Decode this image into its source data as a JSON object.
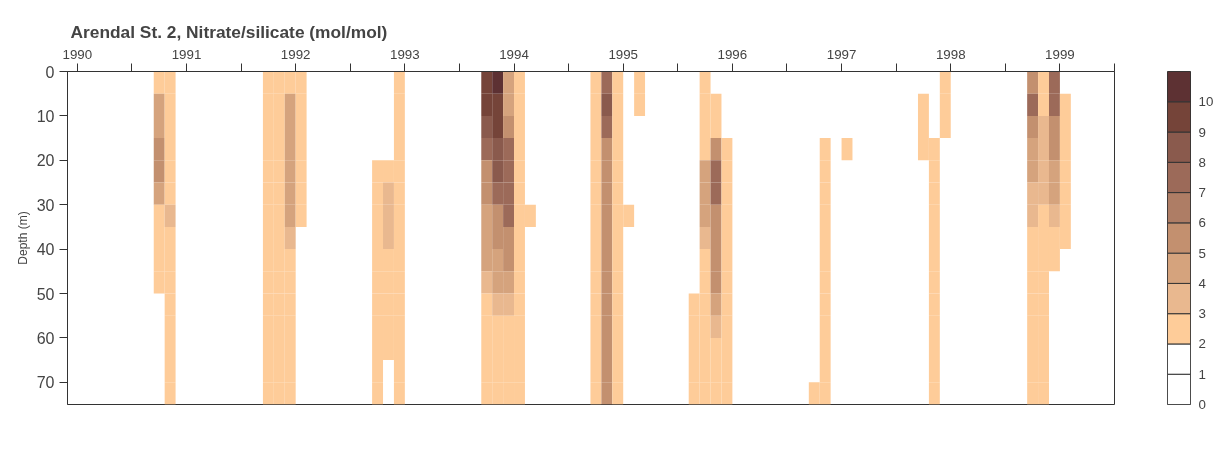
{
  "chart_data": {
    "type": "heatmap",
    "title": "Arendal St. 2, Nitrate/silicate (mol/mol)",
    "ylabel": "Depth (m)",
    "x": [
      1990.45,
      1990.55,
      1990.65,
      1990.75,
      1990.85,
      1990.95,
      1991.05,
      1991.15,
      1991.25,
      1991.35,
      1991.45,
      1991.55,
      1991.65,
      1991.75,
      1991.85,
      1991.95,
      1992.05,
      1992.15,
      1992.25,
      1992.35,
      1992.45,
      1992.55,
      1992.65,
      1992.75,
      1992.85,
      1992.95,
      1993.05,
      1993.15,
      1993.25,
      1993.35,
      1993.45,
      1993.55,
      1993.65,
      1993.75,
      1993.85,
      1993.95,
      1994.05,
      1994.15,
      1994.25,
      1994.35,
      1994.45,
      1994.55,
      1994.65,
      1994.75,
      1994.85,
      1994.95,
      1995.05,
      1995.15,
      1995.25,
      1995.35,
      1995.45,
      1995.55,
      1995.65,
      1995.75,
      1995.85,
      1995.95,
      1996.05,
      1996.15,
      1996.25,
      1996.35,
      1996.45,
      1996.55,
      1996.65,
      1996.75,
      1996.85,
      1996.95,
      1997.05,
      1997.15,
      1997.25,
      1997.35,
      1997.45,
      1997.55,
      1997.65,
      1997.75,
      1997.85,
      1997.95,
      1998.05,
      1998.15,
      1998.25,
      1998.35,
      1998.45,
      1998.55,
      1998.65,
      1998.75,
      1998.85,
      1998.95,
      1999.05,
      1999.15,
      1999.25,
      1999.35,
      1999.45,
      1999.55,
      1999.65,
      1999.75,
      1999.85,
      1999.95
    ],
    "y": [
      2.5,
      7.5,
      12.5,
      17.5,
      22.5,
      27.5,
      32.5,
      37.5,
      42.5,
      47.5,
      52.5,
      57.5,
      62.5,
      67.5,
      72.5
    ],
    "cells": [
      [
        null,
        null,
        null,
        null,
        null,
        null,
        null,
        null,
        3,
        2.5,
        null,
        null,
        null,
        null,
        null,
        null,
        null,
        null,
        2.5,
        2.5,
        3,
        2.5,
        null,
        null,
        null,
        null,
        null,
        null,
        null,
        null,
        2.5,
        null,
        null,
        null,
        null,
        null,
        null,
        null,
        9,
        10,
        4,
        3,
        null,
        null,
        null,
        null,
        null,
        null,
        3,
        7,
        2.5,
        null,
        2.5,
        null,
        null,
        null,
        null,
        null,
        3,
        null,
        null,
        null,
        null,
        null,
        null,
        null,
        null,
        null,
        null,
        null,
        null,
        null,
        null,
        null,
        null,
        null,
        null,
        null,
        null,
        null,
        2.5,
        null,
        null,
        null,
        null,
        null,
        null,
        null,
        6,
        3,
        7,
        null,
        null,
        null,
        null,
        null
      ],
      [
        null,
        null,
        null,
        null,
        null,
        null,
        null,
        null,
        4,
        2.5,
        null,
        null,
        null,
        null,
        null,
        null,
        null,
        null,
        2.5,
        2.5,
        4,
        2.5,
        null,
        null,
        null,
        null,
        null,
        null,
        null,
        null,
        2.5,
        null,
        null,
        null,
        null,
        null,
        null,
        null,
        9,
        9,
        4,
        3,
        null,
        null,
        null,
        null,
        null,
        null,
        3,
        8,
        2.5,
        null,
        2.5,
        null,
        null,
        null,
        null,
        null,
        2.5,
        2.5,
        null,
        null,
        null,
        null,
        null,
        null,
        null,
        null,
        null,
        null,
        null,
        null,
        null,
        null,
        null,
        null,
        null,
        null,
        2.5,
        null,
        2.5,
        null,
        null,
        null,
        null,
        null,
        null,
        null,
        7,
        3,
        7,
        2.5,
        null,
        null,
        null,
        null
      ],
      [
        null,
        null,
        null,
        null,
        null,
        null,
        null,
        null,
        4,
        2.5,
        null,
        null,
        null,
        null,
        null,
        null,
        null,
        null,
        2.5,
        2.5,
        4.5,
        2.5,
        null,
        null,
        null,
        null,
        null,
        null,
        null,
        null,
        2.5,
        null,
        null,
        null,
        null,
        null,
        null,
        null,
        8,
        9,
        5,
        3,
        null,
        null,
        null,
        null,
        null,
        null,
        3,
        7,
        2.5,
        null,
        null,
        null,
        null,
        null,
        null,
        null,
        2.5,
        2.5,
        null,
        null,
        null,
        null,
        null,
        null,
        null,
        null,
        null,
        null,
        null,
        null,
        null,
        null,
        null,
        null,
        null,
        null,
        2.5,
        null,
        2.5,
        null,
        null,
        null,
        null,
        null,
        null,
        null,
        6,
        3.5,
        6,
        2.5,
        null,
        null,
        null,
        null
      ],
      [
        null,
        null,
        null,
        null,
        null,
        null,
        null,
        null,
        6,
        3,
        null,
        null,
        null,
        null,
        null,
        null,
        null,
        null,
        2.5,
        2.5,
        4,
        2.5,
        null,
        null,
        null,
        null,
        null,
        null,
        null,
        null,
        2.5,
        null,
        null,
        null,
        null,
        null,
        null,
        null,
        7,
        8,
        7,
        3,
        null,
        null,
        null,
        null,
        null,
        null,
        3,
        6,
        2.5,
        null,
        null,
        null,
        null,
        null,
        null,
        null,
        3,
        5,
        2.5,
        null,
        null,
        null,
        null,
        null,
        null,
        null,
        null,
        2.5,
        null,
        2.5,
        null,
        null,
        null,
        null,
        null,
        null,
        2.5,
        2.5,
        null,
        null,
        null,
        null,
        null,
        null,
        null,
        null,
        4,
        3.5,
        5,
        2.5,
        null,
        null,
        null,
        null
      ],
      [
        null,
        null,
        null,
        null,
        null,
        null,
        null,
        null,
        6,
        3,
        null,
        null,
        null,
        null,
        null,
        null,
        null,
        null,
        2.5,
        2.5,
        4,
        2.5,
        null,
        null,
        null,
        null,
        null,
        null,
        2.5,
        2.5,
        2.5,
        null,
        null,
        null,
        null,
        null,
        null,
        null,
        6,
        8,
        7,
        2.5,
        null,
        null,
        null,
        null,
        null,
        null,
        3,
        6,
        2.5,
        null,
        null,
        null,
        null,
        null,
        null,
        null,
        4,
        7,
        2.5,
        null,
        null,
        null,
        null,
        null,
        null,
        null,
        null,
        2.5,
        null,
        null,
        null,
        null,
        null,
        null,
        null,
        null,
        null,
        2.5,
        null,
        null,
        null,
        null,
        null,
        null,
        null,
        null,
        4,
        3.5,
        4,
        2.5,
        null,
        null,
        null,
        null
      ],
      [
        null,
        null,
        null,
        null,
        null,
        null,
        null,
        null,
        4,
        3,
        null,
        null,
        null,
        null,
        null,
        null,
        null,
        null,
        2.5,
        2.5,
        4,
        2.5,
        null,
        null,
        null,
        null,
        null,
        null,
        2.5,
        3.5,
        2.5,
        null,
        null,
        null,
        null,
        null,
        null,
        null,
        5,
        7,
        7,
        2.5,
        null,
        null,
        null,
        null,
        null,
        null,
        3,
        6,
        2.5,
        null,
        null,
        null,
        null,
        null,
        null,
        null,
        4,
        7,
        2.5,
        null,
        null,
        null,
        null,
        null,
        null,
        null,
        null,
        2.5,
        null,
        null,
        null,
        null,
        null,
        null,
        null,
        null,
        null,
        2.5,
        null,
        null,
        null,
        null,
        null,
        null,
        null,
        null,
        3.5,
        3.5,
        4,
        2.5,
        null,
        null,
        null,
        null
      ],
      [
        null,
        null,
        null,
        null,
        null,
        null,
        null,
        null,
        3,
        3.5,
        null,
        null,
        null,
        null,
        null,
        null,
        null,
        null,
        2.5,
        2.5,
        4,
        2.5,
        null,
        null,
        null,
        null,
        null,
        null,
        2.5,
        3.5,
        2.5,
        null,
        null,
        null,
        null,
        null,
        null,
        null,
        4.5,
        6,
        7,
        2.5,
        2.5,
        null,
        null,
        null,
        null,
        null,
        3,
        6,
        2.5,
        2.5,
        null,
        null,
        null,
        null,
        null,
        null,
        4,
        6,
        2.5,
        null,
        null,
        null,
        null,
        null,
        null,
        null,
        null,
        2.5,
        null,
        null,
        null,
        null,
        null,
        null,
        null,
        null,
        null,
        2.5,
        null,
        null,
        null,
        null,
        null,
        null,
        null,
        null,
        3.5,
        3,
        3.5,
        2.5,
        null,
        null,
        null,
        null
      ],
      [
        null,
        null,
        null,
        null,
        null,
        null,
        null,
        null,
        3,
        3,
        null,
        null,
        null,
        null,
        null,
        null,
        null,
        null,
        2.5,
        2.5,
        3.5,
        null,
        null,
        null,
        null,
        null,
        null,
        null,
        2.5,
        3.5,
        2.5,
        null,
        null,
        null,
        null,
        null,
        null,
        null,
        4,
        5,
        6,
        2.5,
        null,
        null,
        null,
        null,
        null,
        null,
        3,
        6,
        2.5,
        null,
        null,
        null,
        null,
        null,
        null,
        null,
        3.5,
        6,
        2.5,
        null,
        null,
        null,
        null,
        null,
        null,
        null,
        null,
        2.5,
        null,
        null,
        null,
        null,
        null,
        null,
        null,
        null,
        null,
        2.5,
        null,
        null,
        null,
        null,
        null,
        null,
        null,
        null,
        3,
        3,
        3,
        2.5,
        null,
        null,
        null,
        null
      ],
      [
        null,
        null,
        null,
        null,
        null,
        null,
        null,
        null,
        3,
        2.5,
        null,
        null,
        null,
        null,
        null,
        null,
        null,
        null,
        2.5,
        2.5,
        3,
        null,
        null,
        null,
        null,
        null,
        null,
        null,
        2.5,
        2.5,
        2.5,
        null,
        null,
        null,
        null,
        null,
        null,
        null,
        4,
        4,
        5,
        2.5,
        null,
        null,
        null,
        null,
        null,
        null,
        3,
        5,
        2.5,
        null,
        null,
        null,
        null,
        null,
        null,
        null,
        3,
        5,
        2.5,
        null,
        null,
        null,
        null,
        null,
        null,
        null,
        null,
        2.5,
        null,
        null,
        null,
        null,
        null,
        null,
        null,
        null,
        null,
        2.5,
        null,
        null,
        null,
        null,
        null,
        null,
        null,
        null,
        3,
        2.5,
        2.5,
        null,
        null,
        null,
        null,
        null
      ],
      [
        null,
        null,
        null,
        null,
        null,
        null,
        null,
        null,
        2.5,
        2.5,
        null,
        null,
        null,
        null,
        null,
        null,
        null,
        null,
        2.5,
        2.5,
        2.5,
        null,
        null,
        null,
        null,
        null,
        null,
        null,
        2.5,
        2.5,
        2.5,
        null,
        null,
        null,
        null,
        null,
        null,
        null,
        3.5,
        4,
        4,
        2.5,
        null,
        null,
        null,
        null,
        null,
        null,
        3,
        5,
        2.5,
        null,
        null,
        null,
        null,
        null,
        null,
        null,
        3,
        5,
        2.5,
        null,
        null,
        null,
        null,
        null,
        null,
        null,
        null,
        2.5,
        null,
        null,
        null,
        null,
        null,
        null,
        null,
        null,
        null,
        2.5,
        null,
        null,
        null,
        null,
        null,
        null,
        null,
        null,
        2.5,
        2.5,
        null,
        null,
        null,
        null,
        null,
        null
      ],
      [
        null,
        null,
        null,
        null,
        null,
        null,
        null,
        null,
        null,
        2.5,
        null,
        null,
        null,
        null,
        null,
        null,
        null,
        null,
        2.5,
        2.5,
        2.5,
        null,
        null,
        null,
        null,
        null,
        null,
        null,
        2.5,
        2.5,
        2.5,
        null,
        null,
        null,
        null,
        null,
        null,
        null,
        3,
        3.5,
        3.5,
        2.5,
        null,
        null,
        null,
        null,
        null,
        null,
        3,
        5,
        2.5,
        null,
        null,
        null,
        null,
        null,
        null,
        2.5,
        3,
        4,
        2.5,
        null,
        null,
        null,
        null,
        null,
        null,
        null,
        null,
        2.5,
        null,
        null,
        null,
        null,
        null,
        null,
        null,
        null,
        null,
        2.5,
        null,
        null,
        null,
        null,
        null,
        null,
        null,
        null,
        2.5,
        2.5,
        null,
        null,
        null,
        null,
        null,
        null
      ],
      [
        null,
        null,
        null,
        null,
        null,
        null,
        null,
        null,
        null,
        2.5,
        null,
        null,
        null,
        null,
        null,
        null,
        null,
        null,
        2.5,
        2.5,
        2.5,
        null,
        null,
        null,
        null,
        null,
        null,
        null,
        2.5,
        2.5,
        2.5,
        null,
        null,
        null,
        null,
        null,
        null,
        null,
        3,
        3,
        3,
        2.5,
        null,
        null,
        null,
        null,
        null,
        null,
        3,
        5,
        2.5,
        null,
        null,
        null,
        null,
        null,
        null,
        2.5,
        2.5,
        3.5,
        2.5,
        null,
        null,
        null,
        null,
        null,
        null,
        null,
        null,
        2.5,
        null,
        null,
        null,
        null,
        null,
        null,
        null,
        null,
        null,
        2.5,
        null,
        null,
        null,
        null,
        null,
        null,
        null,
        null,
        2.5,
        2.5,
        null,
        null,
        null,
        null,
        null,
        null
      ],
      [
        null,
        null,
        null,
        null,
        null,
        null,
        null,
        null,
        null,
        2.5,
        null,
        null,
        null,
        null,
        null,
        null,
        null,
        null,
        2.5,
        2.5,
        2.5,
        null,
        null,
        null,
        null,
        null,
        null,
        null,
        2.5,
        2.5,
        2.5,
        null,
        null,
        null,
        null,
        null,
        null,
        null,
        2.5,
        3,
        2.5,
        2.5,
        null,
        null,
        null,
        null,
        null,
        null,
        3,
        5,
        2.5,
        null,
        null,
        null,
        null,
        null,
        null,
        2.5,
        2.5,
        3,
        2.5,
        null,
        null,
        null,
        null,
        null,
        null,
        null,
        null,
        2.5,
        null,
        null,
        null,
        null,
        null,
        null,
        null,
        null,
        null,
        2.5,
        null,
        null,
        null,
        null,
        null,
        null,
        null,
        null,
        2.5,
        2.5,
        null,
        null,
        null,
        null,
        null,
        null
      ],
      [
        null,
        null,
        null,
        null,
        null,
        null,
        null,
        null,
        null,
        2.5,
        null,
        null,
        null,
        null,
        null,
        null,
        null,
        null,
        2.5,
        2.5,
        2.5,
        null,
        null,
        null,
        null,
        null,
        null,
        null,
        2.5,
        null,
        2.5,
        null,
        null,
        null,
        null,
        null,
        null,
        null,
        2.5,
        2.5,
        2.5,
        2.5,
        null,
        null,
        null,
        null,
        null,
        null,
        3,
        5,
        2.5,
        null,
        null,
        null,
        null,
        null,
        null,
        2.5,
        2.5,
        2.5,
        2.5,
        null,
        null,
        null,
        null,
        null,
        null,
        null,
        null,
        2.5,
        null,
        null,
        null,
        null,
        null,
        null,
        null,
        null,
        null,
        2.5,
        null,
        null,
        null,
        null,
        null,
        null,
        null,
        null,
        2.5,
        2.5,
        null,
        null,
        null,
        null,
        null,
        null
      ],
      [
        null,
        null,
        null,
        null,
        null,
        null,
        null,
        null,
        null,
        2.5,
        null,
        null,
        null,
        null,
        null,
        null,
        null,
        null,
        2.5,
        2.5,
        2.5,
        null,
        null,
        null,
        null,
        null,
        null,
        null,
        2.5,
        null,
        2.5,
        null,
        null,
        null,
        null,
        null,
        null,
        null,
        2.5,
        2.5,
        2.5,
        2.5,
        null,
        null,
        null,
        null,
        null,
        null,
        3,
        5,
        2.5,
        null,
        null,
        null,
        null,
        null,
        null,
        2.5,
        2.5,
        2.5,
        2.5,
        null,
        null,
        null,
        null,
        null,
        null,
        null,
        2.5,
        2.5,
        null,
        null,
        null,
        null,
        null,
        null,
        null,
        null,
        null,
        2.5,
        null,
        null,
        null,
        null,
        null,
        null,
        null,
        null,
        2.5,
        2.5,
        null,
        null,
        null,
        null,
        null,
        null
      ]
    ],
    "colors": [
      "#ffffff",
      "#ffffff",
      "#fecc99",
      "#e9b88f",
      "#d5a37d",
      "#c3906f",
      "#ae7d65",
      "#9c6a59",
      "#8a5a4d",
      "#754439",
      "#5d3133"
    ],
    "clim": [
      0,
      11
    ],
    "cticks": [
      0,
      1,
      2,
      3,
      4,
      5,
      6,
      7,
      8,
      9,
      10
    ],
    "xlim": [
      1990.41,
      2000.0
    ],
    "xticks": [
      {
        "value": 1990.5,
        "label": "1990"
      },
      {
        "value": 1991,
        "label": null
      },
      {
        "value": 1991.5,
        "label": "1991"
      },
      {
        "value": 1992,
        "label": null
      },
      {
        "value": 1992.5,
        "label": "1992"
      },
      {
        "value": 1993,
        "label": null
      },
      {
        "value": 1993.5,
        "label": "1993"
      },
      {
        "value": 1994,
        "label": null
      },
      {
        "value": 1994.5,
        "label": "1994"
      },
      {
        "value": 1995,
        "label": null
      },
      {
        "value": 1995.5,
        "label": "1995"
      },
      {
        "value": 1996,
        "label": null
      },
      {
        "value": 1996.5,
        "label": "1996"
      },
      {
        "value": 1997,
        "label": null
      },
      {
        "value": 1997.5,
        "label": "1997"
      },
      {
        "value": 1998,
        "label": null
      },
      {
        "value": 1998.5,
        "label": "1998"
      },
      {
        "value": 1999,
        "label": null
      },
      {
        "value": 1999.5,
        "label": "1999"
      },
      {
        "value": 2000,
        "label": null
      }
    ],
    "ylim": [
      75,
      0
    ],
    "yticks": [
      0,
      10,
      20,
      30,
      40,
      50,
      60,
      70
    ]
  }
}
